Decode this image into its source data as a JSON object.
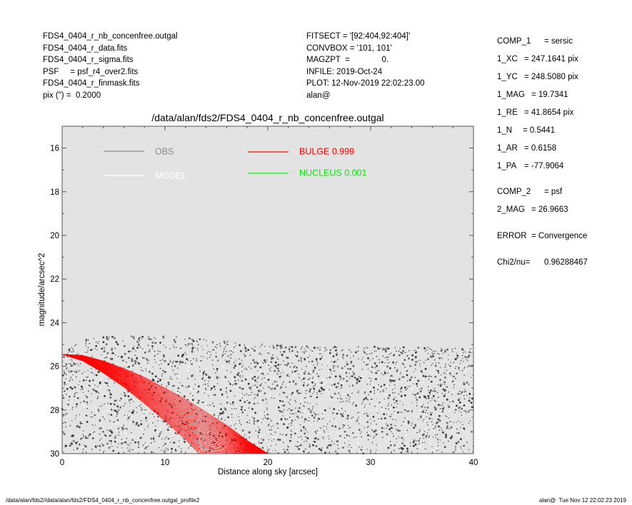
{
  "header_left": [
    "FDS4_0404_r_nb_concenfree.outgal",
    "FDS4_0404_r_data.fits",
    "FDS4_0404_r_sigma.fits",
    "PSF     = psf_r4_over2.fits",
    "FDS4_0404_r_finmask.fits",
    "pix (\") =  0.2000"
  ],
  "header_mid": [
    "FITSECT = '[92:404,92:404]'",
    "CONVBOX = '101, 101'",
    "MAGZPT  =              0.",
    "INFILE: 2019-Oct-24",
    "PLOT: 12-Nov-2019 22:02:23.00",
    "alan@"
  ],
  "side_params": [
    {
      "key": "COMP_1",
      "value": "= sersic"
    },
    {
      "key": "1_XC",
      "value": "= 247.1641 pix"
    },
    {
      "key": "1_YC",
      "value": "= 248.5080 pix"
    },
    {
      "key": "1_MAG",
      "value": "= 19.7341"
    },
    {
      "key": "1_RE",
      "value": "= 41.8654 pix"
    },
    {
      "key": "1_N",
      "value": "= 0.5441"
    },
    {
      "key": "1_AR",
      "value": "= 0.6158"
    },
    {
      "key": "1_PA",
      "value": "= -77.9064"
    },
    {
      "key": "COMP_2",
      "value": "= psf"
    },
    {
      "key": "2_MAG",
      "value": "= 26.9663"
    },
    {
      "key": "ERROR",
      "value": "= Convergence"
    },
    {
      "key": "Chi2/nu=",
      "value": "0.96288467"
    }
  ],
  "footer": {
    "left": "/data/alan/fds2//data/alan/fds2/FDS4_0404_r_nb_concenfree.outgal_profile2",
    "right": "alan@  Tue Nov 12 22:02:23 2019"
  },
  "chart_data": {
    "type": "scatter",
    "title": "/data/alan/fds2/FDS4_0404_r_nb_concenfree.outgal",
    "xlabel": "Distance along sky [arcsec]",
    "ylabel": "magnitude/arcsec^2",
    "xlim": [
      0,
      40
    ],
    "ylim": [
      30,
      15
    ],
    "y_inverted": true,
    "xticks": [
      0,
      10,
      20,
      30,
      40
    ],
    "yticks": [
      16,
      18,
      20,
      22,
      24,
      26,
      28,
      30
    ],
    "grid": false,
    "background": "#e3e3e3",
    "legend": [
      {
        "label": "OBS",
        "color": "#8a8a8a"
      },
      {
        "label": "MODEL",
        "color": "#ffffff"
      },
      {
        "label": "BULGE  0.999",
        "color": "#ff0000"
      },
      {
        "label": "NUCLEUS  0.001",
        "color": "#00ff00"
      }
    ],
    "series": [
      {
        "name": "OBS",
        "color": "#555555",
        "description_points": "noisy pixel cloud",
        "upper_envelope": [
          [
            0,
            25.4
          ],
          [
            2,
            24.8
          ],
          [
            5,
            24.6
          ],
          [
            10,
            24.6
          ],
          [
            15,
            24.8
          ],
          [
            20,
            25.0
          ],
          [
            25,
            25.1
          ],
          [
            30,
            25.1
          ],
          [
            35,
            25.1
          ],
          [
            40,
            25.2
          ]
        ],
        "lower_envelope": [
          [
            0,
            30
          ],
          [
            40,
            30
          ]
        ]
      },
      {
        "name": "MODEL",
        "color": "#ffffff",
        "upper_envelope": [
          [
            0,
            25.3
          ],
          [
            5,
            25.4
          ],
          [
            10,
            25.8
          ],
          [
            20,
            25.9
          ],
          [
            30,
            26.0
          ],
          [
            40,
            26.0
          ]
        ],
        "lower_envelope": [
          [
            0,
            30
          ],
          [
            40,
            30
          ]
        ]
      },
      {
        "name": "BULGE  0.999",
        "color": "#ff0000",
        "upper_edge": [
          [
            0,
            25.45
          ],
          [
            2,
            25.5
          ],
          [
            4,
            25.75
          ],
          [
            6,
            26.1
          ],
          [
            8,
            26.5
          ],
          [
            10,
            27.0
          ],
          [
            12,
            27.5
          ],
          [
            14,
            28.1
          ],
          [
            16,
            28.7
          ],
          [
            18,
            29.4
          ],
          [
            20,
            30.0
          ]
        ],
        "lower_edge": [
          [
            0,
            25.45
          ],
          [
            2,
            25.75
          ],
          [
            4,
            26.3
          ],
          [
            6,
            26.95
          ],
          [
            8,
            27.7
          ],
          [
            10,
            28.5
          ],
          [
            12,
            29.35
          ],
          [
            13.3,
            30.0
          ]
        ]
      },
      {
        "name": "NUCLEUS  0.001",
        "color": "#00ff00",
        "points": []
      }
    ]
  }
}
